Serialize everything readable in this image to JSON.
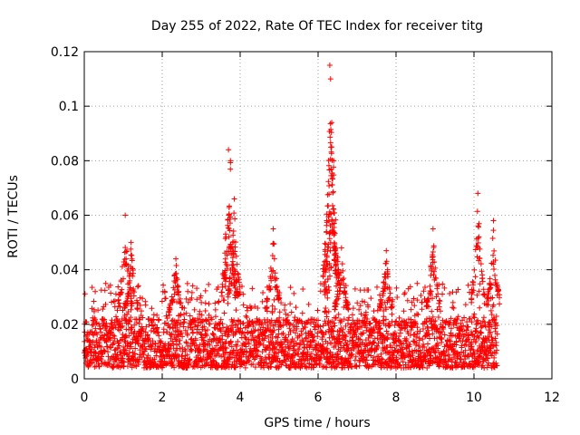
{
  "chart_data": {
    "type": "scatter",
    "title": "Day 255 of 2022, Rate Of TEC Index for receiver titg",
    "xlabel": "GPS time / hours",
    "ylabel": "ROTI / TECUs",
    "xlim": [
      0,
      12
    ],
    "ylim": [
      0,
      0.12
    ],
    "xticks": [
      "0",
      "2",
      "4",
      "6",
      "8",
      "10",
      "12"
    ],
    "yticks": [
      "0",
      "0.02",
      "0.04",
      "0.06",
      "0.08",
      "0.1",
      "0.12"
    ],
    "grid": true,
    "marker": "plus",
    "series_color": "#ff0000",
    "data_extent_hours": [
      0,
      10.6
    ],
    "baseline_band": [
      0.004,
      0.022
    ],
    "peaks": [
      {
        "x": 1.05,
        "y": 0.06
      },
      {
        "x": 1.2,
        "y": 0.05
      },
      {
        "x": 2.35,
        "y": 0.044
      },
      {
        "x": 3.7,
        "y": 0.084
      },
      {
        "x": 3.75,
        "y": 0.08
      },
      {
        "x": 3.85,
        "y": 0.066
      },
      {
        "x": 4.85,
        "y": 0.055
      },
      {
        "x": 6.3,
        "y": 0.115
      },
      {
        "x": 6.32,
        "y": 0.11
      },
      {
        "x": 6.35,
        "y": 0.094
      },
      {
        "x": 6.4,
        "y": 0.08
      },
      {
        "x": 6.6,
        "y": 0.048
      },
      {
        "x": 7.75,
        "y": 0.047
      },
      {
        "x": 8.95,
        "y": 0.055
      },
      {
        "x": 10.1,
        "y": 0.068
      },
      {
        "x": 10.5,
        "y": 0.058
      }
    ]
  }
}
